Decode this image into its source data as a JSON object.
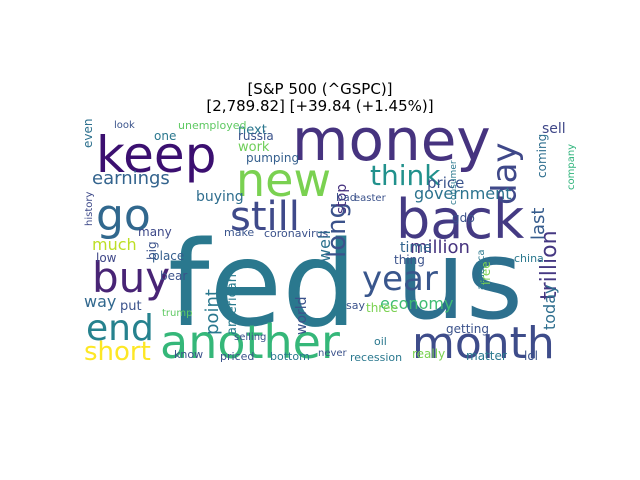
{
  "figure": {
    "title_line1": "[S&P 500 (^GSPC)]",
    "title_line2": "[2,789.82]  [+39.84 (+1.45%)]"
  },
  "palette": [
    "#440154",
    "#482878",
    "#3e4989",
    "#31688e",
    "#26828e",
    "#1f9e89",
    "#35b779",
    "#6ece58",
    "#b5de2b",
    "#fde725"
  ],
  "words": [
    {
      "text": "fed",
      "color": "#2a788e"
    },
    {
      "text": "us",
      "color": "#2d708e"
    },
    {
      "text": "money",
      "color": "#46337f"
    },
    {
      "text": "keep",
      "color": "#3b0f70"
    },
    {
      "text": "back",
      "color": "#443a83"
    },
    {
      "text": "another",
      "color": "#35b779"
    },
    {
      "text": "month",
      "color": "#3e4c8a"
    },
    {
      "text": "new",
      "color": "#7ad151"
    },
    {
      "text": "go",
      "color": "#31688e"
    },
    {
      "text": "buy",
      "color": "#482475"
    },
    {
      "text": "still",
      "color": "#3f4a8a"
    },
    {
      "text": "end",
      "color": "#26828e"
    },
    {
      "text": "think",
      "color": "#21918c"
    },
    {
      "text": "day",
      "color": "#3f4889"
    },
    {
      "text": "year",
      "color": "#39568c"
    },
    {
      "text": "long",
      "color": "#3b528b"
    },
    {
      "text": "short",
      "color": "#fde725"
    },
    {
      "text": "earnings",
      "color": "#33638d"
    },
    {
      "text": "government",
      "color": "#2c738e"
    },
    {
      "text": "economy",
      "color": "#3fbc73"
    },
    {
      "text": "trillion",
      "color": "#453882"
    },
    {
      "text": "million",
      "color": "#46337e"
    },
    {
      "text": "last",
      "color": "#365c8d"
    },
    {
      "text": "much",
      "color": "#bddf26"
    },
    {
      "text": "today",
      "color": "#2e6e8e"
    },
    {
      "text": "point",
      "color": "#2a788e"
    },
    {
      "text": "american",
      "color": "#297b8e"
    },
    {
      "text": "way",
      "color": "#31688e"
    },
    {
      "text": "time",
      "color": "#32648e"
    },
    {
      "text": "world",
      "color": "#3b528b"
    },
    {
      "text": "well",
      "color": "#2c718e"
    },
    {
      "text": "stop",
      "color": "#46317e"
    },
    {
      "text": "buying",
      "color": "#2e6d8e"
    },
    {
      "text": "next",
      "color": "#2a768e"
    },
    {
      "text": "work",
      "color": "#6ece58"
    },
    {
      "text": "russia",
      "color": "#3b528b"
    },
    {
      "text": "pumping",
      "color": "#355f8d"
    },
    {
      "text": "price",
      "color": "#3a548c"
    },
    {
      "text": "sell",
      "color": "#3f4788"
    },
    {
      "text": "coming",
      "color": "#2e6e8e"
    },
    {
      "text": "company",
      "color": "#2fb47c"
    },
    {
      "text": "even",
      "color": "#2d708e"
    },
    {
      "text": "one",
      "color": "#2a778e"
    },
    {
      "text": "look",
      "color": "#3a538b"
    },
    {
      "text": "unemployed",
      "color": "#5ec962"
    },
    {
      "text": "history",
      "color": "#3e4a89"
    },
    {
      "text": "many",
      "color": "#3e4989"
    },
    {
      "text": "big",
      "color": "#3b528b"
    },
    {
      "text": "place",
      "color": "#355e8d"
    },
    {
      "text": "low",
      "color": "#3f4788"
    },
    {
      "text": "bear",
      "color": "#3b528b"
    },
    {
      "text": "put",
      "color": "#3b528b"
    },
    {
      "text": "make",
      "color": "#3a548c"
    },
    {
      "text": "coronavirus",
      "color": "#3b528b"
    },
    {
      "text": "gdp",
      "color": "#3b528b"
    },
    {
      "text": "free",
      "color": "#7ad151"
    },
    {
      "text": "china",
      "color": "#2a788e"
    },
    {
      "text": "thing",
      "color": "#3b528b"
    },
    {
      "text": "america",
      "color": "#2a788e"
    },
    {
      "text": "getting",
      "color": "#3b528b"
    },
    {
      "text": "really",
      "color": "#7ad151"
    },
    {
      "text": "matter",
      "color": "#2a788e"
    },
    {
      "text": "lol",
      "color": "#3b528b"
    },
    {
      "text": "recession",
      "color": "#2a788e"
    },
    {
      "text": "oil",
      "color": "#2a788e"
    },
    {
      "text": "never",
      "color": "#3b528b"
    },
    {
      "text": "bottom",
      "color": "#2a788e"
    },
    {
      "text": "priced",
      "color": "#3b528b"
    },
    {
      "text": "know",
      "color": "#3b528b"
    },
    {
      "text": "selling",
      "color": "#3b528b"
    },
    {
      "text": "trump",
      "color": "#5ec962"
    },
    {
      "text": "three",
      "color": "#7ad151"
    },
    {
      "text": "say",
      "color": "#3b528b"
    },
    {
      "text": "bad",
      "color": "#3b528b"
    },
    {
      "text": "easter",
      "color": "#3b528b"
    },
    {
      "text": "consumer",
      "color": "#2a788e"
    }
  ]
}
